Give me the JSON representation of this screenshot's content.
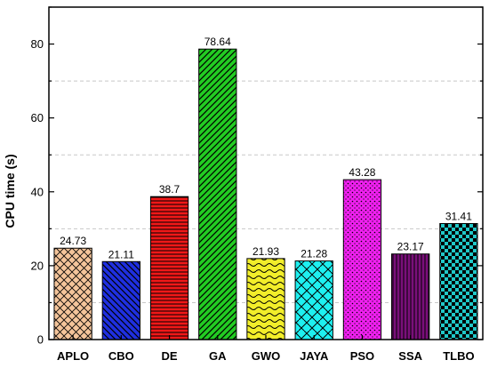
{
  "chart_data": {
    "type": "bar",
    "categories": [
      "APLO",
      "CBO",
      "DE",
      "GA",
      "GWO",
      "JAYA",
      "PSO",
      "SSA",
      "TLBO"
    ],
    "values": [
      24.73,
      21.11,
      38.7,
      78.64,
      21.93,
      21.28,
      43.28,
      23.17,
      31.41
    ],
    "data_labels": [
      "24.73",
      "21.11",
      "38.7",
      "78.64",
      "21.93",
      "21.28",
      "43.28",
      "23.17",
      "31.41"
    ],
    "colors": [
      "#f4c49a",
      "#1f2fe0",
      "#f01818",
      "#22cc22",
      "#f2ee2a",
      "#1ef0f0",
      "#f020f0",
      "#7a0f7a",
      "#20c8c8"
    ],
    "patterns": [
      "crosshatch",
      "diagonal-back",
      "horizontal",
      "diagonal-forward",
      "wave",
      "brick",
      "dots",
      "vertical",
      "checker"
    ],
    "xlabel": "",
    "ylabel": "CPU time (s)",
    "ylim": [
      0,
      90
    ],
    "yticks": [
      0,
      20,
      40,
      60,
      80
    ],
    "grid": "horizontal-dashed",
    "legend": "none"
  }
}
